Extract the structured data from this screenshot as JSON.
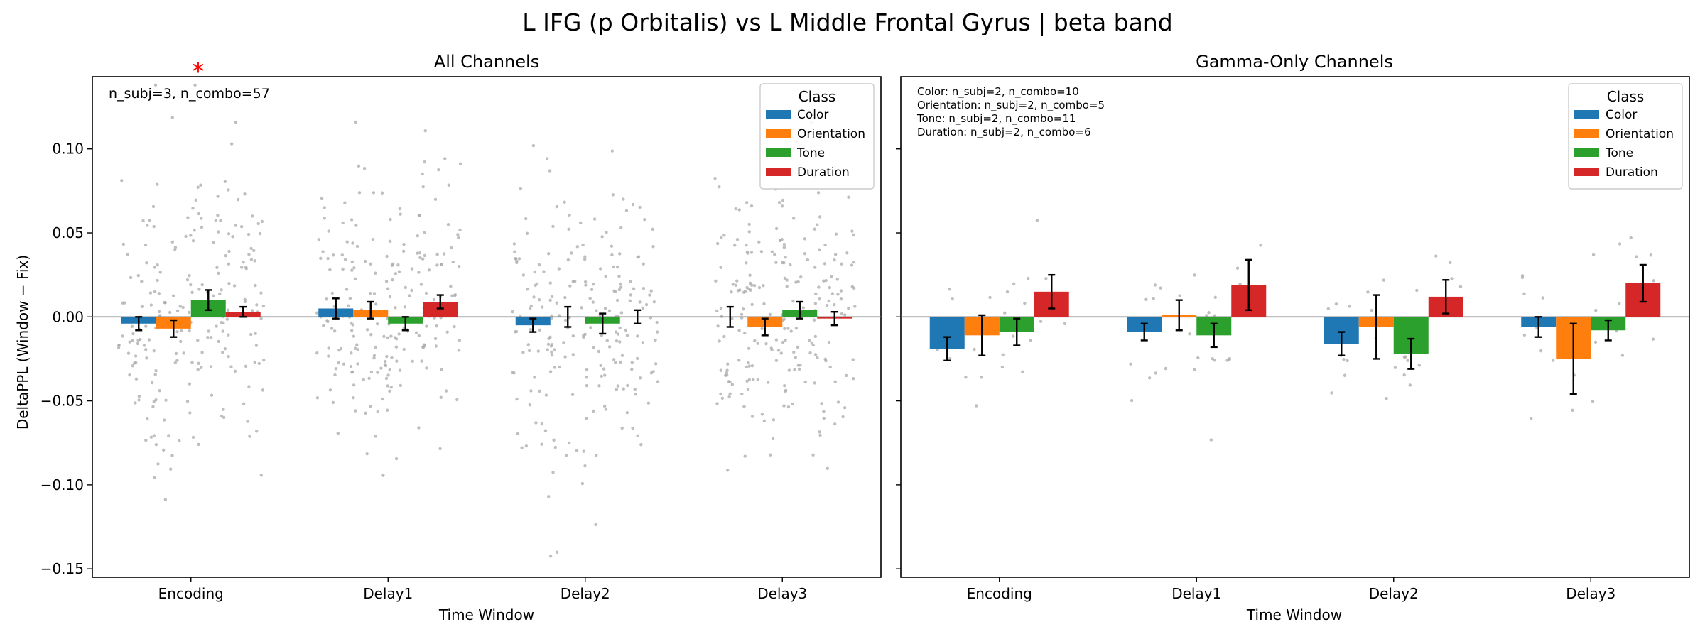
{
  "figure": {
    "title": "L IFG (p Orbitalis) vs L Middle Frontal Gyrus  |  beta band",
    "ylabel": "DeltaPPL (Window − Fix)",
    "xlabel": "Time Window",
    "legend_title": "Class",
    "class_colors": {
      "Color": "#1f77b4",
      "Orientation": "#ff7f0e",
      "Tone": "#2ca02c",
      "Duration": "#d62728"
    },
    "significance_marker": "*",
    "significance_color": "#ff0000",
    "scatter_color": "#a9a9a9"
  },
  "chart_data": [
    {
      "type": "bar",
      "title": "All Channels",
      "annotation": [
        "n_subj=3, n_combo=57"
      ],
      "xlabel": "Time Window",
      "ylabel": "DeltaPPL (Window − Fix)",
      "categories": [
        "Encoding",
        "Delay1",
        "Delay2",
        "Delay3"
      ],
      "ylim": [
        -0.155,
        0.143
      ],
      "yticks": [
        0.1,
        0.05,
        0.0,
        -0.05,
        -0.1,
        -0.15
      ],
      "ytick_labels": [
        "0.10",
        "0.05",
        "0.00",
        "−0.05",
        "−0.10",
        "−0.15"
      ],
      "legend_position": "top-right",
      "significance": [
        {
          "category": "Encoding",
          "marker": "*"
        }
      ],
      "series": [
        {
          "name": "Color",
          "values": [
            -0.004,
            0.005,
            -0.005,
            0.0
          ],
          "err": [
            0.004,
            0.006,
            0.004,
            0.006
          ]
        },
        {
          "name": "Orientation",
          "values": [
            -0.007,
            0.004,
            0.0,
            -0.006
          ],
          "err": [
            0.005,
            0.005,
            0.006,
            0.005
          ]
        },
        {
          "name": "Tone",
          "values": [
            0.01,
            -0.004,
            -0.004,
            0.004
          ],
          "err": [
            0.006,
            0.004,
            0.006,
            0.005
          ]
        },
        {
          "name": "Duration",
          "values": [
            0.003,
            0.009,
            0.0,
            -0.001
          ],
          "err": [
            0.003,
            0.004,
            0.004,
            0.004
          ]
        }
      ]
    },
    {
      "type": "bar",
      "title": "Gamma-Only Channels",
      "annotation": [
        "Color: n_subj=2, n_combo=10",
        "Orientation: n_subj=2, n_combo=5",
        "Tone: n_subj=2, n_combo=11",
        "Duration: n_subj=2, n_combo=6"
      ],
      "xlabel": "Time Window",
      "categories": [
        "Encoding",
        "Delay1",
        "Delay2",
        "Delay3"
      ],
      "ylim": [
        -0.155,
        0.143
      ],
      "legend_position": "top-right",
      "series": [
        {
          "name": "Color",
          "values": [
            -0.019,
            -0.009,
            -0.016,
            -0.006
          ],
          "err": [
            0.007,
            0.005,
            0.007,
            0.006
          ]
        },
        {
          "name": "Orientation",
          "values": [
            -0.011,
            0.001,
            -0.006,
            -0.025
          ],
          "err": [
            0.012,
            0.009,
            0.019,
            0.021
          ]
        },
        {
          "name": "Tone",
          "values": [
            -0.009,
            -0.011,
            -0.022,
            -0.008
          ],
          "err": [
            0.008,
            0.007,
            0.009,
            0.006
          ]
        },
        {
          "name": "Duration",
          "values": [
            0.015,
            0.019,
            0.012,
            0.02
          ],
          "err": [
            0.01,
            0.015,
            0.01,
            0.011
          ]
        }
      ]
    }
  ]
}
